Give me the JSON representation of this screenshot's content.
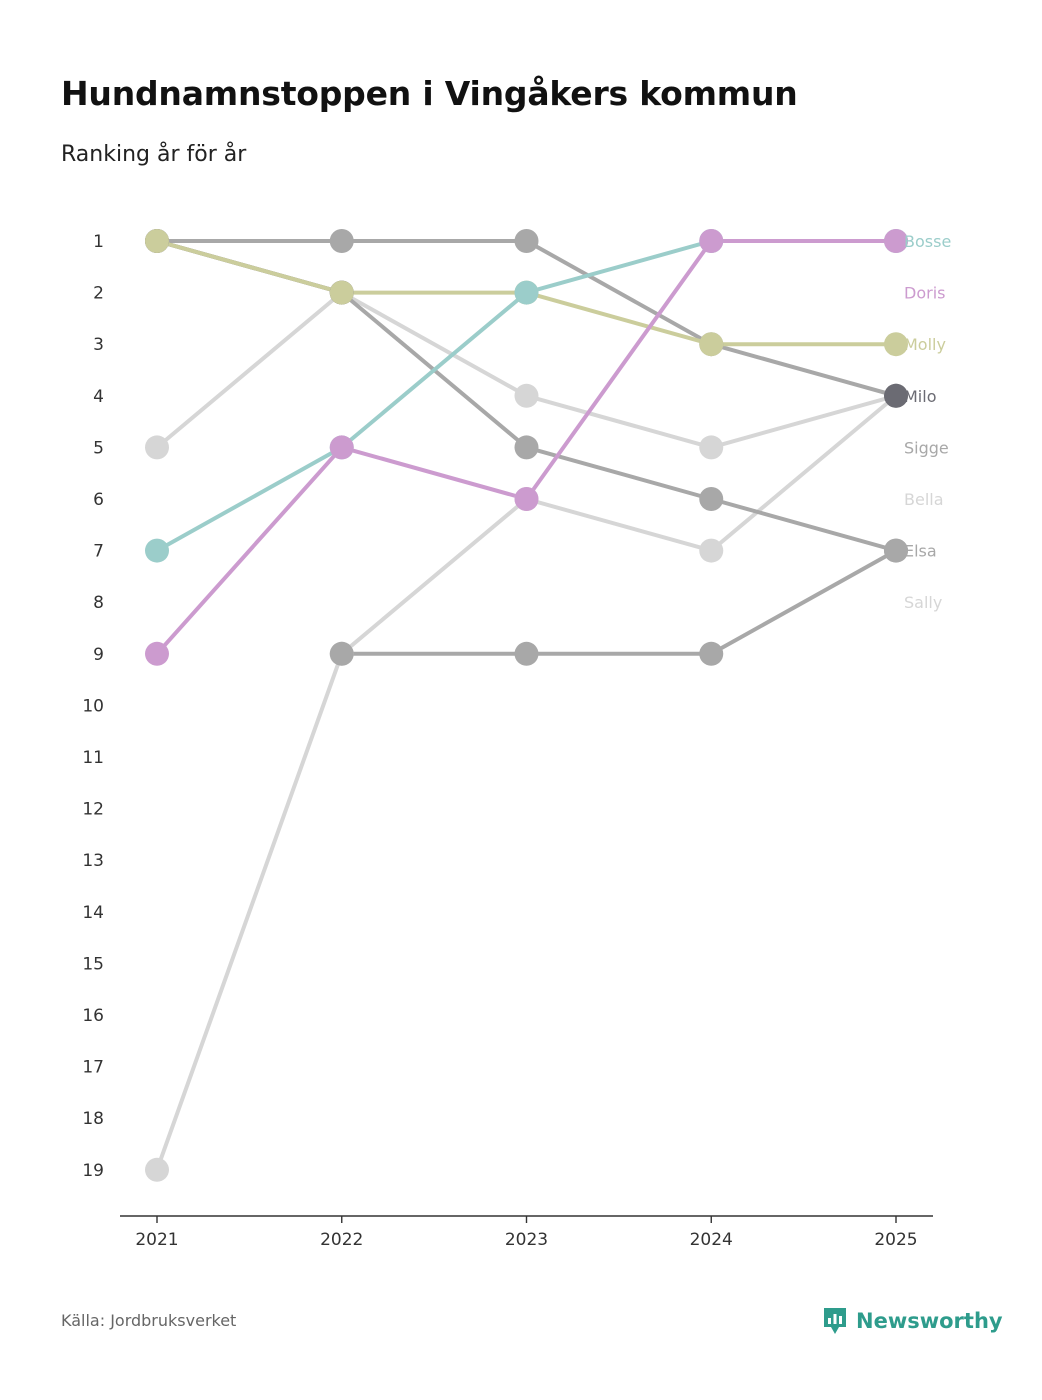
{
  "title": "Hundnamnstoppen i Vingåkers kommun",
  "subtitle": "Ranking år för år",
  "footer": {
    "source": "Källa: Jordbruksverket",
    "brand": "Newsworthy"
  },
  "colors": {
    "Bosse": "#9bcdca",
    "Doris": "#cc9bcf",
    "Molly": "#cbcd9c",
    "Milo": "#6b6b73",
    "Sigge": "#a8a8a8",
    "Bella": "#d6d6d6",
    "Elsa": "#a8a8a8",
    "Sally": "#d6d6d6",
    "axis": "#333333",
    "brand": "#2e9c8c"
  },
  "chart_data": {
    "type": "line",
    "subtype": "bump",
    "x": [
      "2021",
      "2022",
      "2023",
      "2024",
      "2025"
    ],
    "y_ticks": [
      1,
      2,
      3,
      4,
      5,
      6,
      7,
      8,
      9,
      10,
      11,
      12,
      13,
      14,
      15,
      16,
      17,
      18,
      19
    ],
    "ylim": [
      1,
      19
    ],
    "y_inverted": true,
    "xlabel": "",
    "ylabel": "",
    "series": [
      {
        "name": "Sigge",
        "values": [
          1,
          1,
          1,
          3,
          4
        ],
        "label_rank": 5
      },
      {
        "name": "Milo",
        "values": [
          1,
          2,
          null,
          null,
          4
        ],
        "label_rank": 4
      },
      {
        "name": "Bella",
        "values": [
          5,
          2,
          4,
          5,
          4
        ],
        "label_rank": 6
      },
      {
        "name": "Sally",
        "values": [
          19,
          9,
          6,
          7,
          4
        ],
        "label_rank": 8
      },
      {
        "name": "Elsa",
        "values": [
          null,
          2,
          5,
          6,
          7
        ],
        "label_rank": 7
      },
      {
        "name": "Elsa",
        "values": [
          null,
          9,
          9,
          9,
          7
        ],
        "label_rank": null
      },
      {
        "name": "Molly",
        "values": [
          1,
          2,
          2,
          3,
          3
        ],
        "label_rank": 3
      },
      {
        "name": "Bosse",
        "values": [
          7,
          5,
          2,
          1,
          1
        ],
        "label_rank": 1
      },
      {
        "name": "Doris",
        "values": [
          9,
          5,
          6,
          1,
          1
        ],
        "label_rank": 2
      }
    ],
    "end_labels": [
      "Bosse",
      "Doris",
      "Molly",
      "Milo",
      "Sigge",
      "Bella",
      "Elsa",
      "Sally"
    ]
  }
}
